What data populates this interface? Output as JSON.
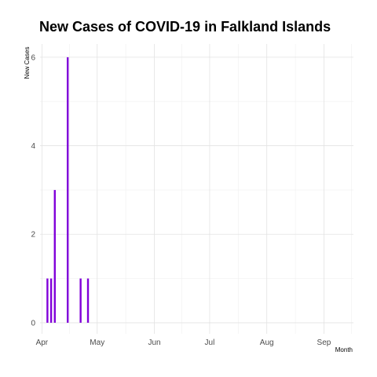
{
  "chart_data": {
    "type": "bar",
    "title": "New Cases of COVID-19 in Falkland Islands",
    "xlabel": "Month",
    "ylabel": "New Cases",
    "x_type": "date",
    "xlim": [
      "2020-03-31",
      "2020-09-17"
    ],
    "ylim": [
      -0.25,
      6.3
    ],
    "yticks": [
      0,
      2,
      4,
      6
    ],
    "xticks": [
      {
        "date": "2020-04-01",
        "label": "Apr"
      },
      {
        "date": "2020-05-01",
        "label": "May"
      },
      {
        "date": "2020-06-01",
        "label": "Jun"
      },
      {
        "date": "2020-07-01",
        "label": "Jul"
      },
      {
        "date": "2020-08-01",
        "label": "Aug"
      },
      {
        "date": "2020-09-01",
        "label": "Sep"
      }
    ],
    "grid": true,
    "series": [
      {
        "color": "#8000d9",
        "points": [
          {
            "date": "2020-04-04",
            "value": 1
          },
          {
            "date": "2020-04-06",
            "value": 1
          },
          {
            "date": "2020-04-08",
            "value": 3
          },
          {
            "date": "2020-04-15",
            "value": 6
          },
          {
            "date": "2020-04-22",
            "value": 1
          },
          {
            "date": "2020-04-26",
            "value": 1
          }
        ]
      }
    ]
  }
}
